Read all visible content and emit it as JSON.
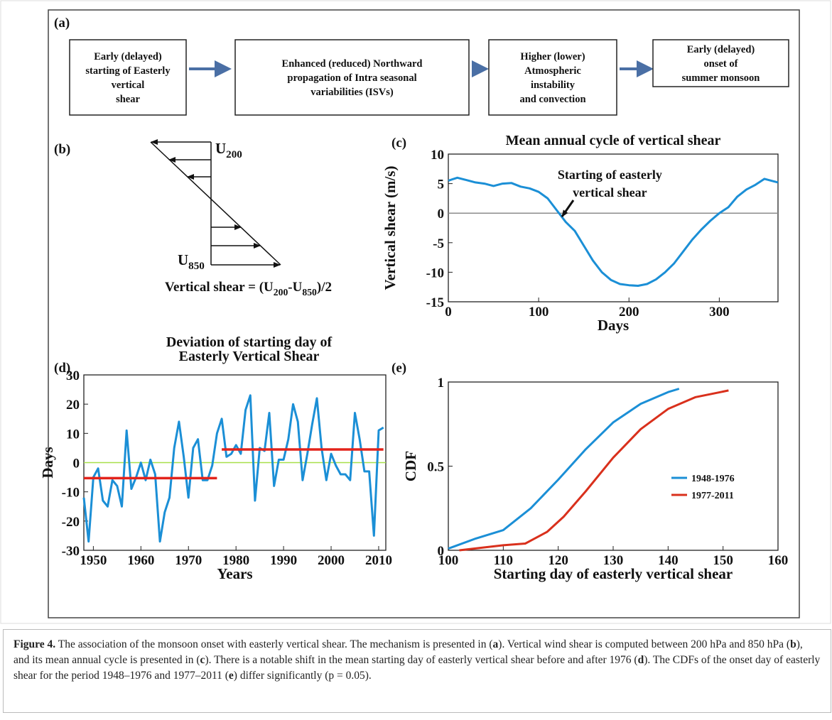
{
  "figure": {
    "panel_labels": [
      "(a)",
      "(b)",
      "(c)",
      "(d)",
      "(e)"
    ]
  },
  "flowchart": {
    "boxes": [
      {
        "lines": [
          "Early (delayed)",
          "starting of Easterly",
          "vertical",
          "shear"
        ]
      },
      {
        "lines": [
          "Enhanced (reduced) Northward",
          "propagation of Intra seasonal",
          "variabilities (ISVs)"
        ]
      },
      {
        "lines": [
          "Higher (lower)",
          "Atmospheric",
          "instability",
          "and convection"
        ]
      },
      {
        "lines": [
          "Early (delayed)",
          "onset of",
          "summer monsoon"
        ]
      }
    ]
  },
  "shear_diagram": {
    "top_label": [
      {
        "text": "U"
      },
      {
        "text": "200",
        "sub": true
      }
    ],
    "bottom_label": [
      {
        "text": "U"
      },
      {
        "text": "850",
        "sub": true
      }
    ],
    "equation": [
      {
        "text": "Vertical shear = (U"
      },
      {
        "text": "200",
        "sub": true
      },
      {
        "text": "-U"
      },
      {
        "text": "850",
        "sub": true
      },
      {
        "text": ")/2"
      }
    ]
  },
  "chart_data": [
    {
      "type": "line",
      "title": "Mean annual cycle of vertical shear",
      "xlabel": "Days",
      "ylabel": "Vertical shear (m/s)",
      "annotation": [
        "Starting of easterly",
        "vertical shear"
      ],
      "x": [
        0,
        10,
        20,
        30,
        40,
        50,
        60,
        70,
        80,
        90,
        100,
        110,
        120,
        130,
        140,
        150,
        160,
        170,
        180,
        190,
        200,
        210,
        220,
        230,
        240,
        250,
        260,
        270,
        280,
        290,
        300,
        310,
        320,
        330,
        340,
        350,
        360,
        365
      ],
      "values": [
        5.5,
        6,
        5.6,
        5.2,
        5,
        4.6,
        5,
        5.1,
        4.5,
        4.2,
        3.6,
        2.5,
        0.5,
        -1.5,
        -3,
        -5.5,
        -8,
        -10,
        -11.3,
        -12,
        -12.2,
        -12.3,
        -12,
        -11.2,
        -10,
        -8.5,
        -6.5,
        -4.5,
        -2.8,
        -1.3,
        0,
        1,
        2.8,
        4,
        4.8,
        5.8,
        5.4,
        5.2
      ],
      "color": "#1b8fd6",
      "reference_line": {
        "value": 0,
        "color": "#8c8c8c"
      },
      "xlim": [
        0,
        365
      ],
      "xticks": [
        0,
        100,
        200,
        300
      ],
      "ylim": [
        -15,
        10
      ],
      "yticks": [
        -15,
        -10,
        -5,
        0,
        5,
        10
      ],
      "grid": false
    },
    {
      "type": "line",
      "title": [
        "Deviation of starting day of",
        "Easterly Vertical Shear"
      ],
      "xlabel": "Years",
      "ylabel": "Days",
      "x": [
        1948,
        1949,
        1950,
        1951,
        1952,
        1953,
        1954,
        1955,
        1956,
        1957,
        1958,
        1959,
        1960,
        1961,
        1962,
        1963,
        1964,
        1965,
        1966,
        1967,
        1968,
        1969,
        1970,
        1971,
        1972,
        1973,
        1974,
        1975,
        1976,
        1977,
        1978,
        1979,
        1980,
        1981,
        1982,
        1983,
        1984,
        1985,
        1986,
        1987,
        1988,
        1989,
        1990,
        1991,
        1992,
        1993,
        1994,
        1995,
        1996,
        1997,
        1998,
        1999,
        2000,
        2001,
        2002,
        2003,
        2004,
        2005,
        2006,
        2007,
        2008,
        2009,
        2010,
        2011
      ],
      "values": [
        -12,
        -27,
        -5,
        -2,
        -13,
        -15,
        -6,
        -8,
        -15,
        11,
        -9,
        -5,
        0,
        -6,
        1,
        -4,
        -27,
        -17,
        -12,
        5,
        14,
        2,
        -12,
        5,
        8,
        -6,
        -6,
        -1,
        10,
        15,
        2,
        3,
        6,
        3,
        18,
        23,
        -13,
        5,
        4,
        17,
        -8,
        1,
        1,
        8,
        20,
        14,
        -6,
        3,
        13,
        22,
        5,
        -6,
        3,
        -1,
        -4,
        -4,
        -6,
        17,
        8,
        -3,
        -3,
        -25,
        11,
        12
      ],
      "color": "#1b8fd6",
      "reference_line": {
        "value": 0,
        "color": "#a8e04a"
      },
      "mean_lines": [
        {
          "start": 1948,
          "end": 1976,
          "value": -5.3
        },
        {
          "start": 1977,
          "end": 2011,
          "value": 4.5
        }
      ],
      "mean_color": "#e3231b",
      "xlim": [
        1948,
        2011.5
      ],
      "xticks": [
        1950,
        1960,
        1970,
        1980,
        1990,
        2000,
        2010
      ],
      "ylim": [
        -30,
        30
      ],
      "yticks": [
        -30,
        -20,
        -10,
        0,
        10,
        20,
        30
      ],
      "grid": false
    },
    {
      "type": "line",
      "xlabel": "Starting day of easterly vertical shear",
      "ylabel": "CDF",
      "legend": "right",
      "series": [
        {
          "name": "1948-1976",
          "color": "#1b8fd6",
          "x": [
            100,
            105,
            110,
            115,
            120,
            125,
            130,
            135,
            140,
            142
          ],
          "values": [
            0.01,
            0.07,
            0.12,
            0.25,
            0.42,
            0.6,
            0.76,
            0.87,
            0.94,
            0.96
          ]
        },
        {
          "name": "1977-2011",
          "color": "#d9301c",
          "x": [
            102,
            110,
            114,
            118,
            121,
            125,
            130,
            135,
            140,
            145,
            151
          ],
          "values": [
            0,
            0.03,
            0.04,
            0.11,
            0.2,
            0.35,
            0.55,
            0.72,
            0.84,
            0.91,
            0.95
          ]
        }
      ],
      "xlim": [
        100,
        160
      ],
      "xticks": [
        100,
        110,
        120,
        130,
        140,
        150,
        160
      ],
      "ylim": [
        0,
        1
      ],
      "yticks": [
        0,
        0.5,
        1
      ],
      "grid": false
    }
  ],
  "caption": {
    "segments": [
      {
        "text": "Figure 4.",
        "bold": true
      },
      {
        "text": " The association of the monsoon onset with easterly vertical shear. The mechanism is presented in (",
        "bold": false
      },
      {
        "text": "a",
        "bold": true
      },
      {
        "text": "). Vertical wind shear is computed between 200 hPa and 850 hPa (",
        "bold": false
      },
      {
        "text": "b",
        "bold": true
      },
      {
        "text": "), and its mean annual cycle is presented in (",
        "bold": false
      },
      {
        "text": "c",
        "bold": true
      },
      {
        "text": "). There is a notable shift in the mean starting day of easterly vertical shear before and after 1976 (",
        "bold": false
      },
      {
        "text": "d",
        "bold": true
      },
      {
        "text": "). The CDFs of the onset day of easterly shear for the period 1948–1976 and 1977–2011 (",
        "bold": false
      },
      {
        "text": "e",
        "bold": true
      },
      {
        "text": ") differ significantly (p = 0.05).",
        "bold": false
      }
    ]
  }
}
